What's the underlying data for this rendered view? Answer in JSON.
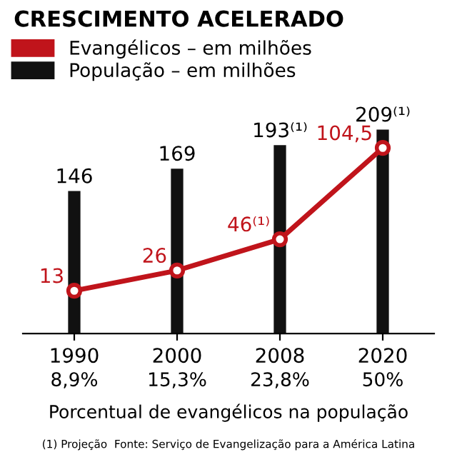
{
  "chart_data": {
    "type": "bar",
    "title": "CRESCIMENTO ACELERADO",
    "categories": [
      "1990",
      "2000",
      "2008",
      "2020"
    ],
    "series": [
      {
        "name": "Evangélicos – em milhões",
        "type": "line",
        "axis": "y2",
        "color": "#c0141b",
        "values": [
          13,
          26,
          46,
          104.5
        ],
        "value_labels": [
          "13",
          "26",
          "46⁽¹⁾",
          "104,5"
        ]
      },
      {
        "name": "População – em milhões",
        "color": "#111111",
        "values": [
          146,
          169,
          193,
          209
        ],
        "value_labels": [
          "146",
          "169",
          "193⁽¹⁾",
          "209⁽¹⁾"
        ]
      }
    ],
    "tick_labels": "x",
    "marker": "circle",
    "grid": false,
    "legend": "top left",
    "annotations": [
      "8,9%",
      "15,3%",
      "23,8%",
      "50%",
      "Porcentual de evangélicos na população",
      "(1) Projeção  Fonte: Serviço de Evangelização para a América Latina"
    ]
  }
}
